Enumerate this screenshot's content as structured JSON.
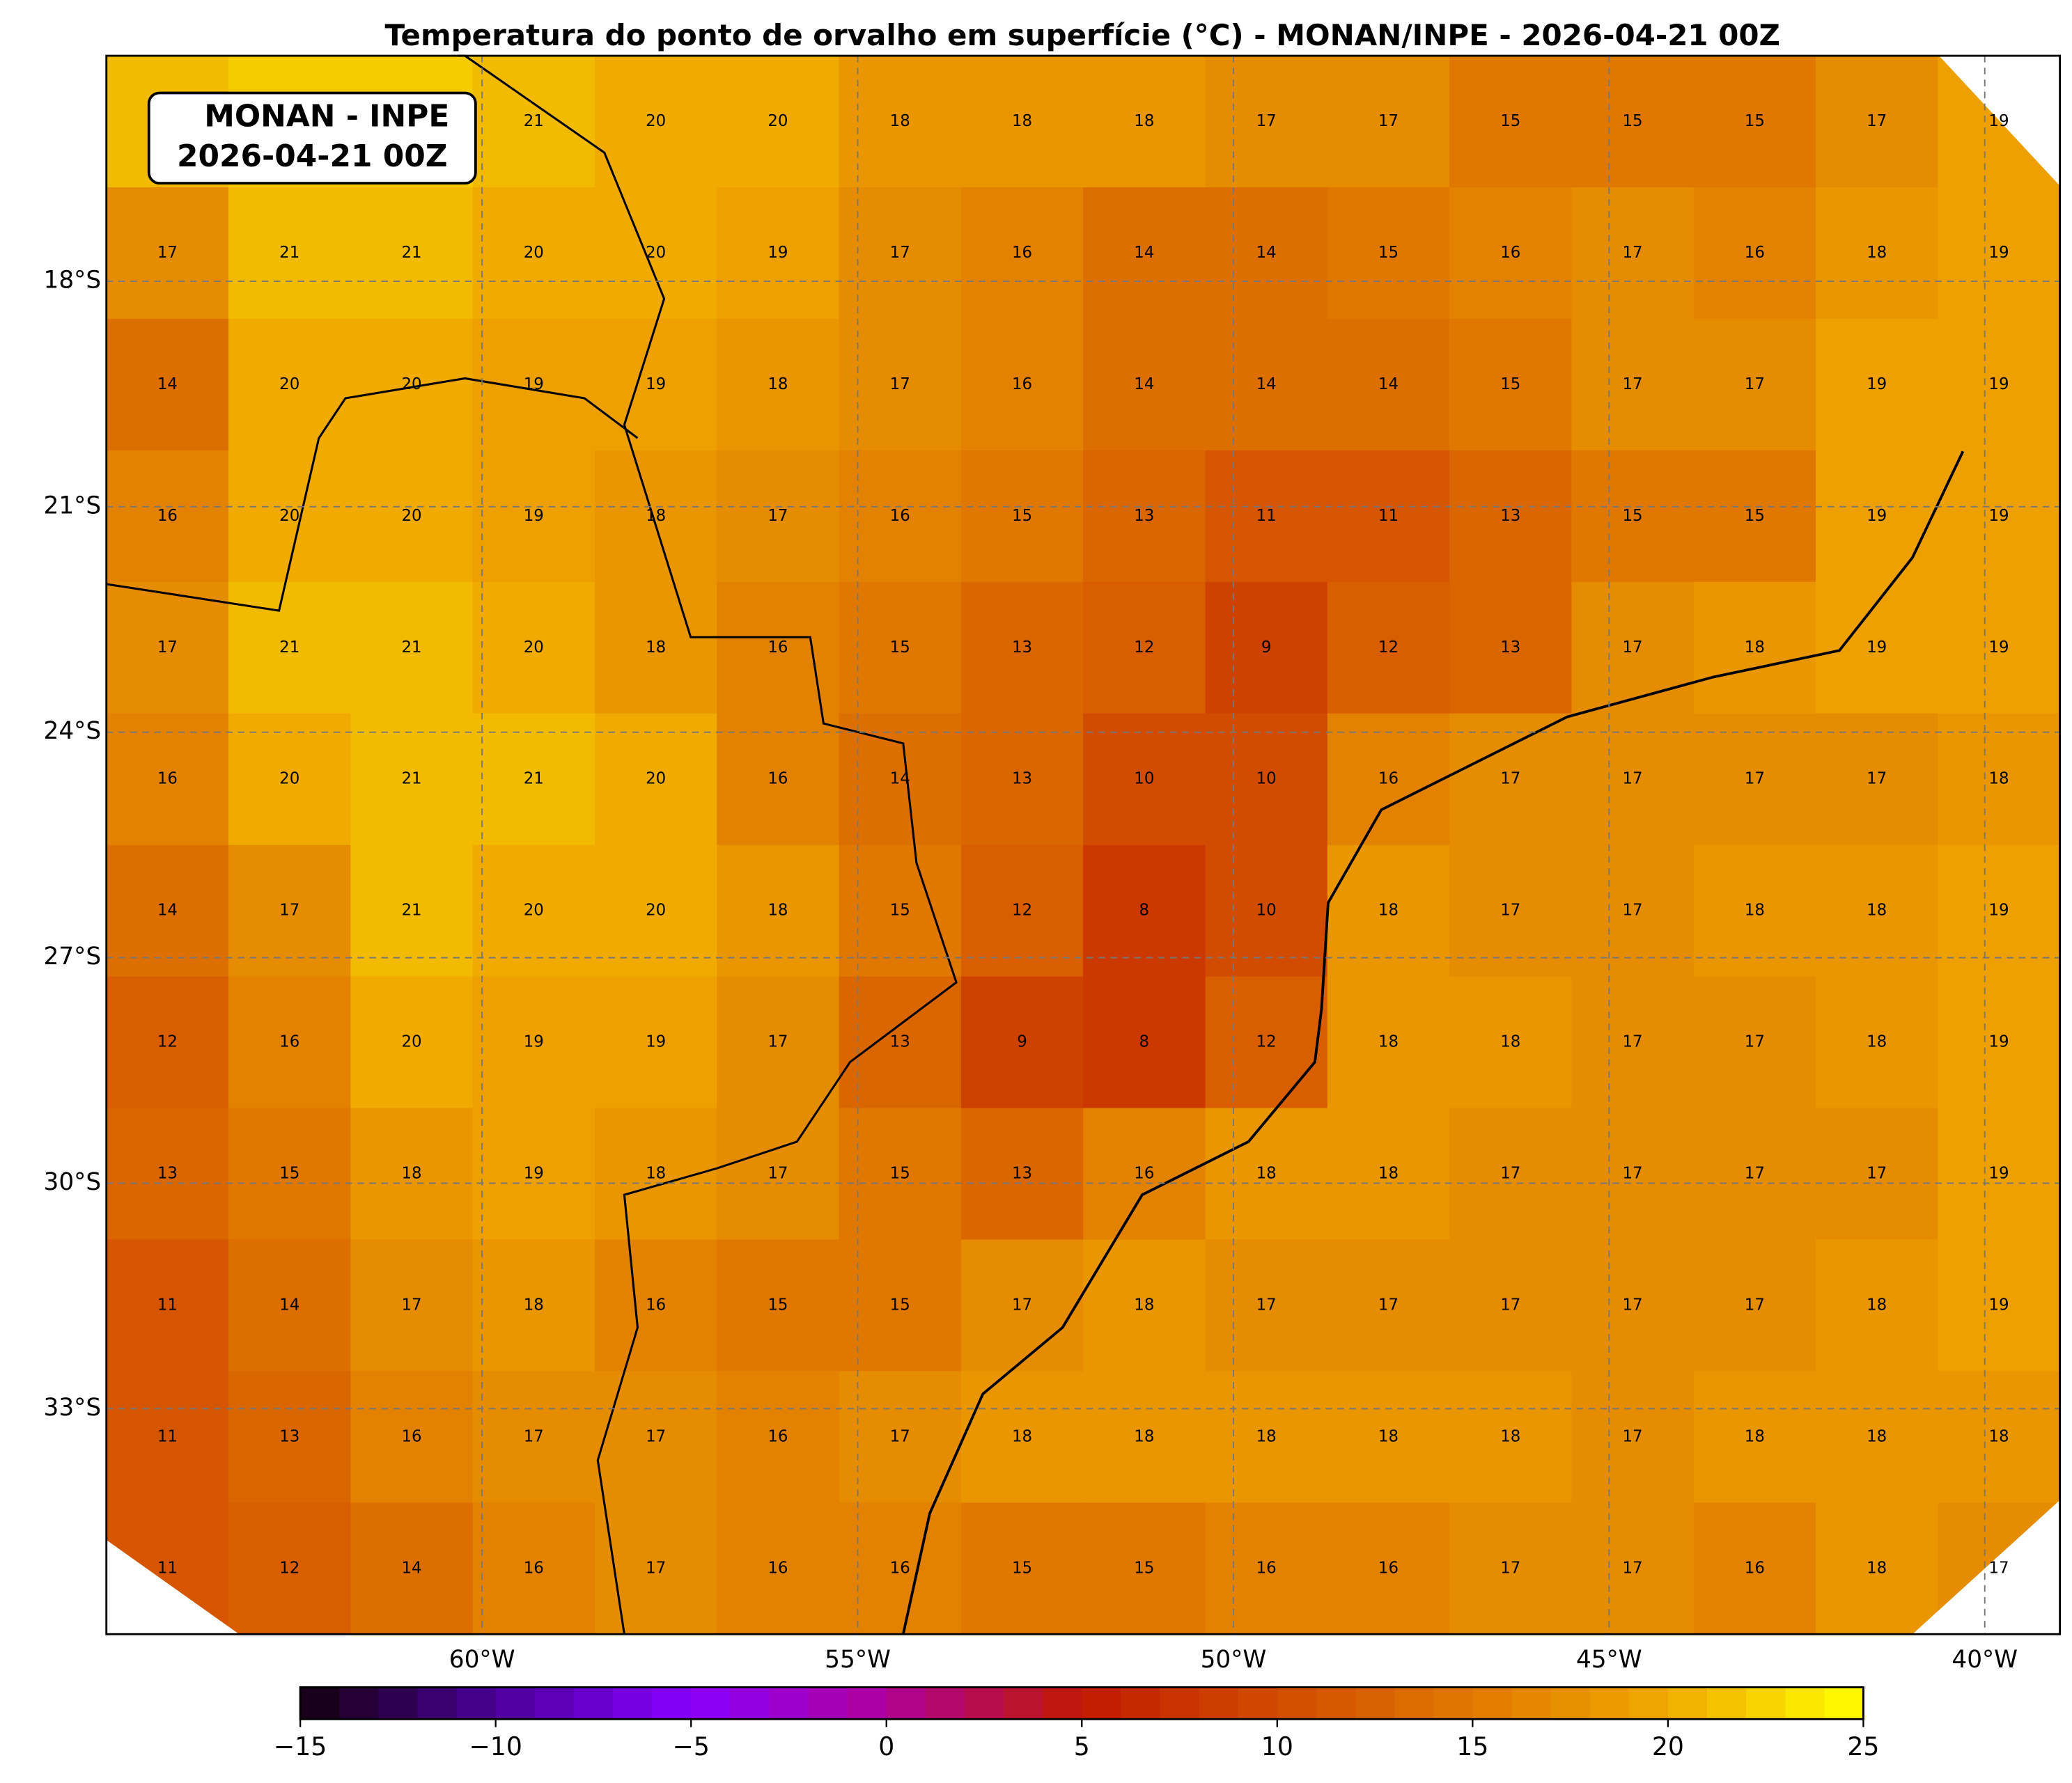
{
  "title": "Temperatura do ponto de orvalho em superfície (°C) - MONAN/INPE - 2026-04-21 00Z",
  "info_box": [
    "MONAN - INPE",
    "2026-04-21 00Z"
  ],
  "map": {
    "xlim": [
      -65,
      -39
    ],
    "ylim": [
      -36,
      -15
    ],
    "xticks": [
      {
        "value": -60,
        "label": "60°W"
      },
      {
        "value": -55,
        "label": "55°W"
      },
      {
        "value": -50,
        "label": "50°W"
      },
      {
        "value": -45,
        "label": "45°W"
      },
      {
        "value": -40,
        "label": "40°W"
      }
    ],
    "yticks": [
      {
        "value": -18,
        "label": "18°S"
      },
      {
        "value": -21,
        "label": "21°S"
      },
      {
        "value": -24,
        "label": "24°S"
      },
      {
        "value": -27,
        "label": "27°S"
      },
      {
        "value": -30,
        "label": "30°S"
      },
      {
        "value": -33,
        "label": "33°S"
      }
    ],
    "grid": true,
    "values": [
      [
        21,
        22,
        22,
        21,
        20,
        20,
        18,
        18,
        18,
        17,
        17,
        15,
        15,
        15,
        17,
        19
      ],
      [
        17,
        21,
        21,
        20,
        20,
        19,
        17,
        16,
        14,
        14,
        15,
        16,
        17,
        16,
        18,
        19
      ],
      [
        14,
        20,
        20,
        19,
        19,
        18,
        17,
        16,
        14,
        14,
        14,
        15,
        17,
        17,
        19,
        19
      ],
      [
        16,
        20,
        20,
        19,
        18,
        17,
        16,
        15,
        13,
        11,
        11,
        13,
        15,
        15,
        19,
        19
      ],
      [
        17,
        21,
        21,
        20,
        18,
        16,
        15,
        13,
        12,
        9,
        12,
        13,
        17,
        18,
        19,
        19
      ],
      [
        16,
        20,
        21,
        21,
        20,
        16,
        14,
        13,
        10,
        10,
        16,
        17,
        17,
        17,
        17,
        18
      ],
      [
        14,
        17,
        21,
        20,
        20,
        18,
        15,
        12,
        8,
        10,
        18,
        17,
        17,
        18,
        18,
        19
      ],
      [
        12,
        16,
        20,
        19,
        19,
        17,
        13,
        9,
        8,
        12,
        18,
        18,
        17,
        17,
        18,
        19
      ],
      [
        13,
        15,
        18,
        19,
        18,
        17,
        15,
        13,
        16,
        18,
        18,
        17,
        17,
        17,
        17,
        19
      ],
      [
        11,
        14,
        17,
        18,
        16,
        15,
        15,
        17,
        18,
        17,
        17,
        17,
        17,
        17,
        18,
        19
      ],
      [
        11,
        13,
        16,
        17,
        17,
        16,
        17,
        18,
        18,
        18,
        18,
        18,
        17,
        18,
        18,
        18
      ],
      [
        11,
        12,
        14,
        16,
        17,
        16,
        16,
        15,
        15,
        16,
        16,
        17,
        17,
        16,
        18,
        17
      ]
    ]
  },
  "colorbar": {
    "clim": [
      -15,
      25
    ],
    "levels": 40,
    "colors": [
      "#14000c",
      "#4a0098",
      "#8a00ff",
      "#b0009a",
      "#c01a00",
      "#d24c00",
      "#e07800",
      "#f0aa00",
      "#ffff00"
    ],
    "ticks": [
      {
        "value": -15,
        "label": "−15"
      },
      {
        "value": -10,
        "label": "−10"
      },
      {
        "value": -5,
        "label": "−5"
      },
      0,
      5,
      10,
      15,
      20,
      25
    ]
  }
}
